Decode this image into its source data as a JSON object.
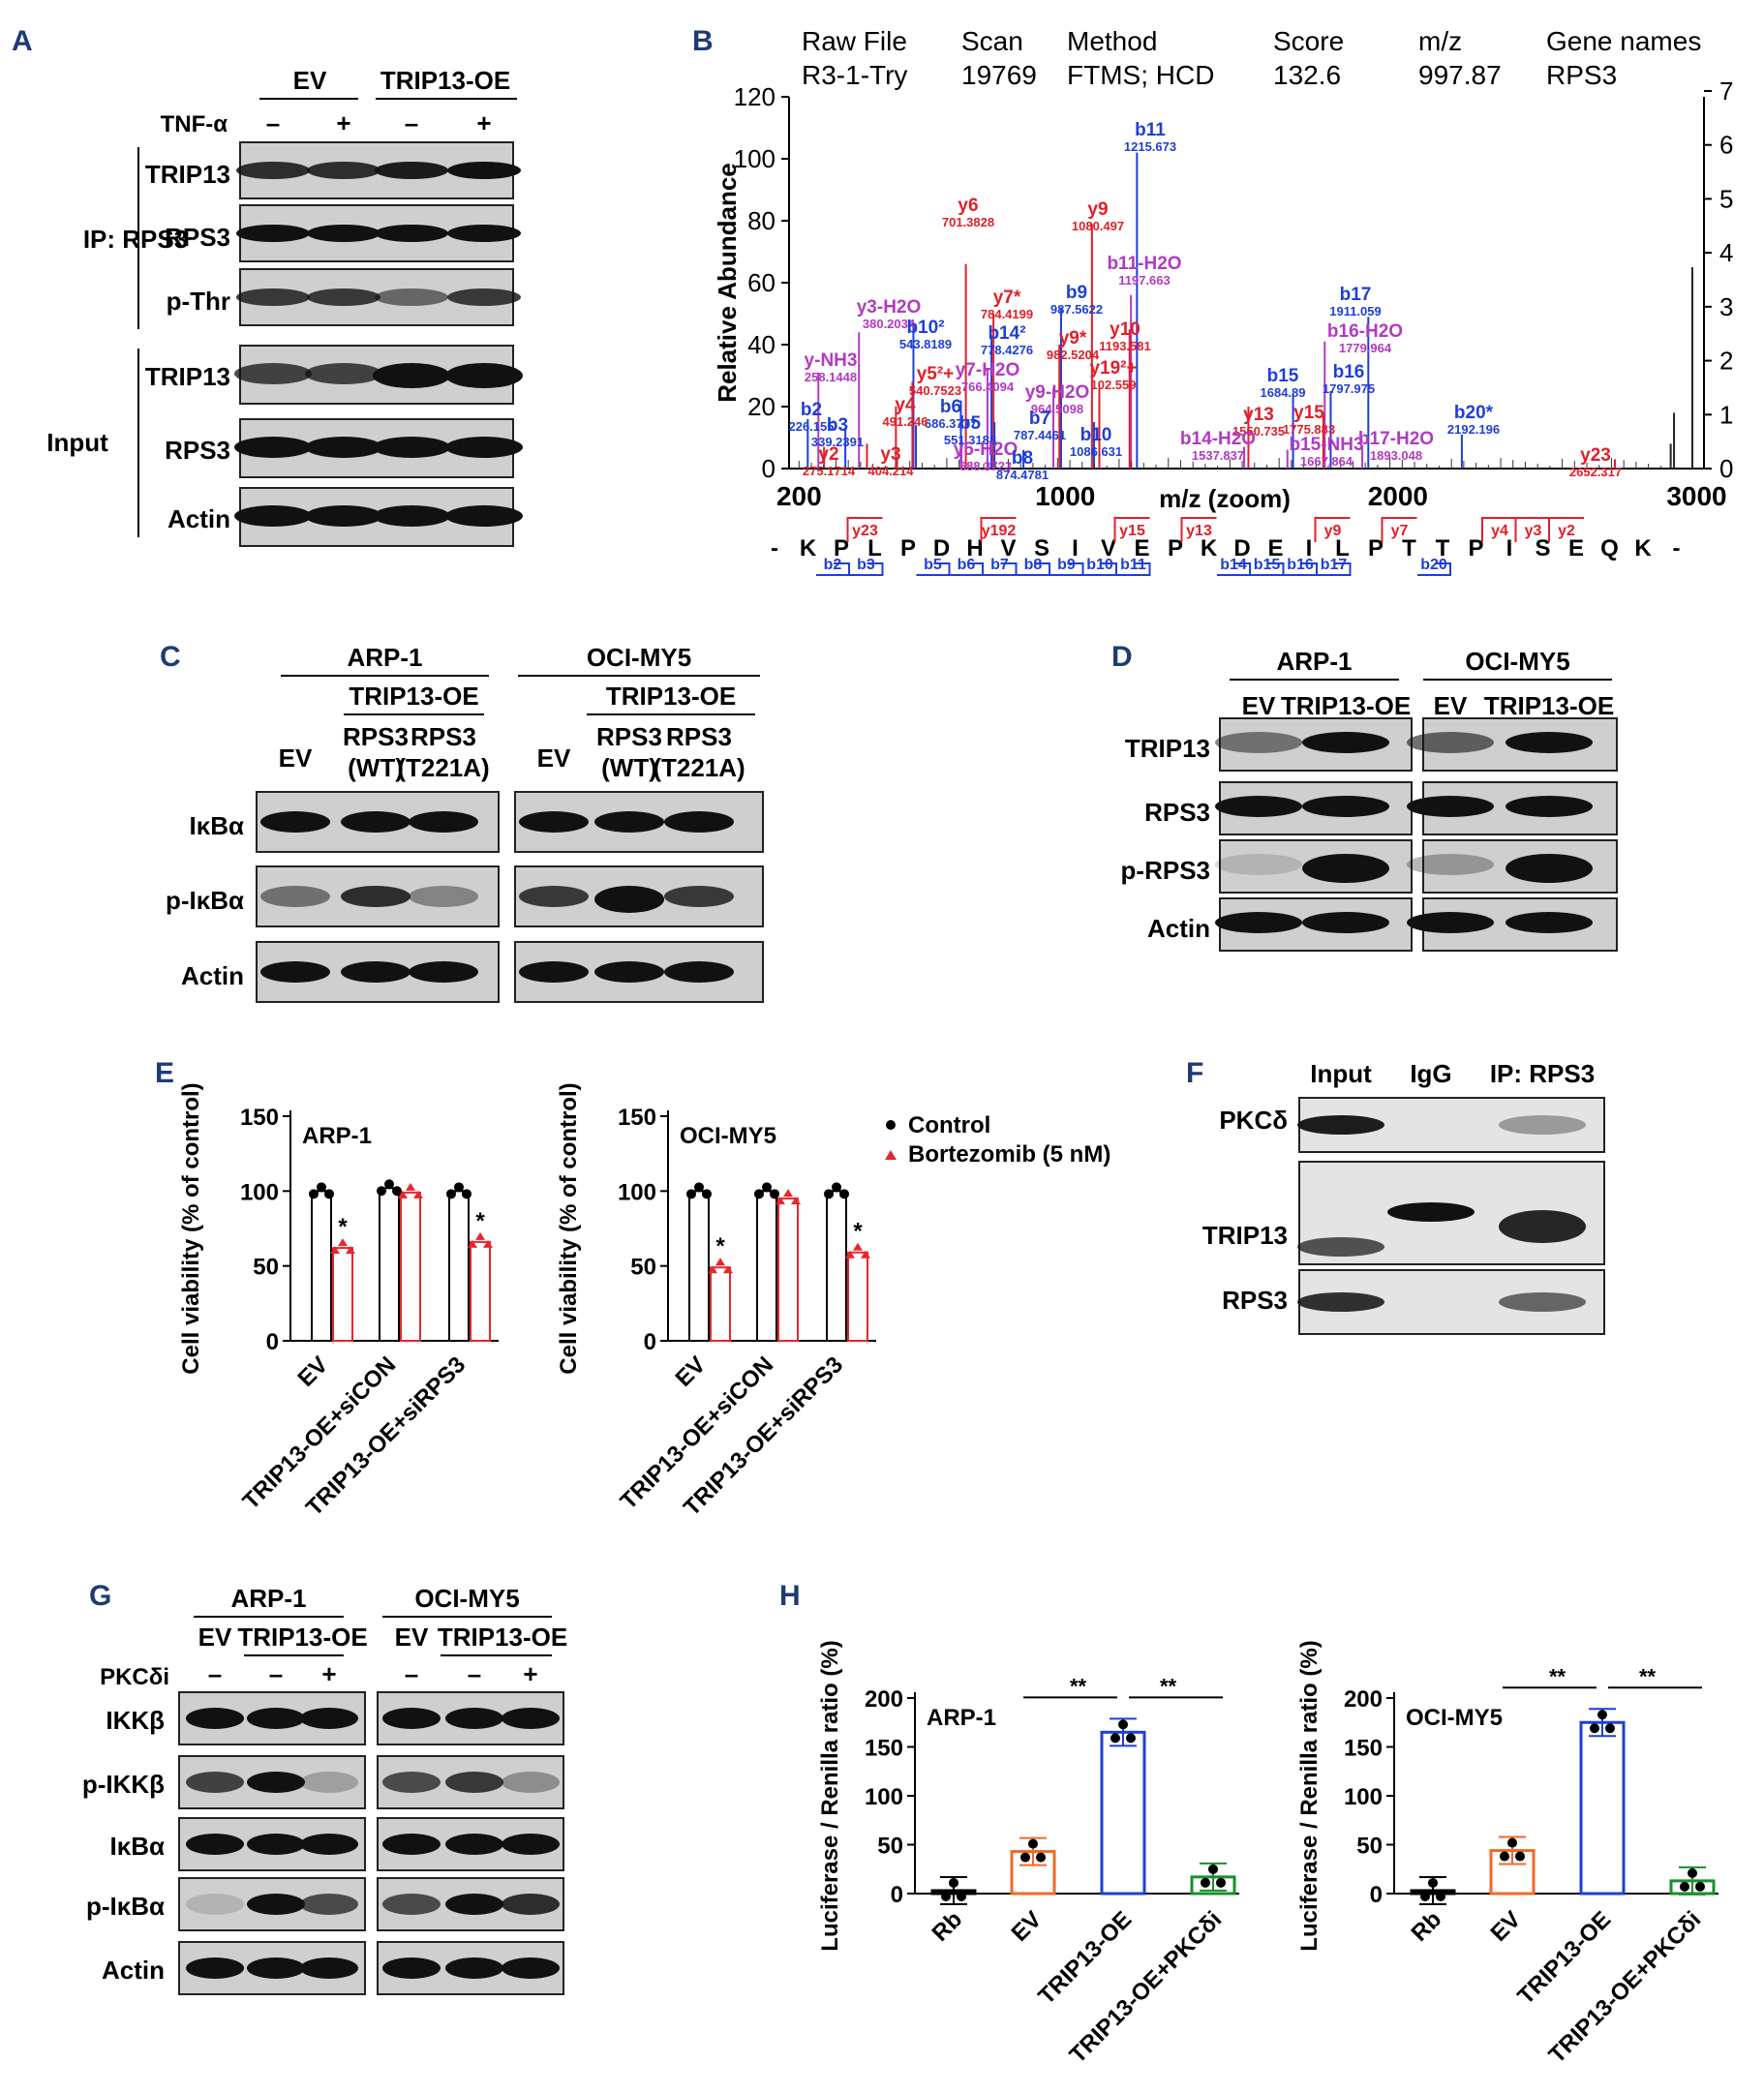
{
  "panel_letters": {
    "A": "A",
    "B": "B",
    "C": "C",
    "D": "D",
    "E": "E",
    "F": "F",
    "G": "G",
    "H": "H"
  },
  "colors": {
    "letter": "#1f3b73",
    "b_ion": "#1f3fd6",
    "y_ion": "#e0202a",
    "loss": "#b23ac2",
    "red": "#e8262c",
    "blue": "#1f3fd6",
    "orange": "#f06a25",
    "green": "#1a8f2c"
  },
  "panelA": {
    "groups": [
      "EV",
      "TRIP13-OE"
    ],
    "treat_label": "TNF-α",
    "treat_signs": [
      "–",
      "+",
      "–",
      "+"
    ],
    "ip_label": "IP: RPS3",
    "input_label": "Input",
    "ip_rows": [
      "TRIP13",
      "RPS3",
      "p-Thr"
    ],
    "input_rows": [
      "TRIP13",
      "RPS3",
      "Actin"
    ]
  },
  "panelB": {
    "header_keys": [
      "Raw File",
      "Scan",
      "Method",
      "Score",
      "m/z",
      "Gene names"
    ],
    "header_vals": [
      "R3-1-Try",
      "19769",
      "FTMS; HCD",
      "132.6",
      "997.87",
      "RPS3"
    ],
    "ylabel": "Relative Abundance",
    "xlabel": "m/z (zoom)",
    "yticks_left": [
      "0",
      "20",
      "40",
      "60",
      "80",
      "100",
      "120"
    ],
    "yticks_right": [
      "0",
      "1",
      "2",
      "3",
      "4",
      "5",
      "6",
      "7"
    ],
    "xticks": [
      "200",
      "1000",
      "2000",
      "3000"
    ],
    "peptide": [
      "-",
      "K",
      "P",
      "L",
      "P",
      "D",
      "H",
      "V",
      "S",
      "I",
      "V",
      "E",
      "P",
      "K",
      "D",
      "E",
      "I",
      "L",
      "P",
      "T",
      "T",
      "P",
      "I",
      "S",
      "E",
      "Q",
      "K",
      "-"
    ],
    "y_ions_top": [
      "y23",
      "y192",
      "y15",
      "y13",
      "y9",
      "y7",
      "y4",
      "y3",
      "y2"
    ],
    "b_ions_bottom": [
      "b2",
      "b3",
      "b5",
      "b6",
      "b7",
      "b8",
      "b9",
      "b10",
      "b11",
      "b14",
      "b15",
      "b16",
      "b17",
      "b20"
    ],
    "labels": [
      {
        "t": "b11",
        "v": "1215.673",
        "c": "b"
      },
      {
        "t": "y6",
        "v": "701.3828",
        "c": "y"
      },
      {
        "t": "y9",
        "v": "1080.497",
        "c": "y"
      },
      {
        "t": "b11-H2O",
        "v": "1197.663",
        "c": "l"
      },
      {
        "t": "y7*",
        "v": "784.4199",
        "c": "y"
      },
      {
        "t": "b9",
        "v": "987.5622",
        "c": "b"
      },
      {
        "t": "y3-H2O",
        "v": "380.2034",
        "c": "l"
      },
      {
        "t": "b17",
        "v": "1911.059",
        "c": "b"
      },
      {
        "t": "b10²",
        "v": "543.8189",
        "c": "b"
      },
      {
        "t": "b14²",
        "v": "778.4276",
        "c": "b"
      },
      {
        "t": "y9*",
        "v": "982.5204",
        "c": "y"
      },
      {
        "t": "y10",
        "v": "1193.581",
        "c": "y"
      },
      {
        "t": "b16-H2O",
        "v": "1779.964",
        "c": "l"
      },
      {
        "t": "y-NH3",
        "v": "258.1448",
        "c": "l"
      },
      {
        "t": "y7-H2O",
        "v": "766.4094",
        "c": "l"
      },
      {
        "t": "y19²+",
        "v": "102.559",
        "c": "y"
      },
      {
        "t": "y5²+",
        "v": "540.7523",
        "c": "y"
      },
      {
        "t": "y9-H2O",
        "v": "964.5098",
        "c": "l"
      },
      {
        "t": "b15",
        "v": "1684.89",
        "c": "b"
      },
      {
        "t": "b16",
        "v": "1797.975",
        "c": "b"
      },
      {
        "t": "b6",
        "v": "686.3777",
        "c": "b"
      },
      {
        "t": "y4",
        "v": "491.246",
        "c": "y"
      },
      {
        "t": "b2",
        "v": "226.155",
        "c": "b"
      },
      {
        "t": "b3",
        "v": "339.2391",
        "c": "b"
      },
      {
        "t": "b5",
        "v": "551.3188",
        "c": "b"
      },
      {
        "t": "b7",
        "v": "787.4461",
        "c": "b"
      },
      {
        "t": "y13",
        "v": "1550.735",
        "c": "y"
      },
      {
        "t": "y15",
        "v": "1775.883",
        "c": "y"
      },
      {
        "t": "b20*",
        "v": "2192.196",
        "c": "b"
      },
      {
        "t": "y2",
        "v": "275.1714",
        "c": "y"
      },
      {
        "t": "y3",
        "v": "404.214",
        "c": "y"
      },
      {
        "t": "y5-H2O",
        "v": "688.3723",
        "c": "l"
      },
      {
        "t": "b8",
        "v": "874.4781",
        "c": "b"
      },
      {
        "t": "b10",
        "v": "1086.631",
        "c": "b"
      },
      {
        "t": "b14-H2O",
        "v": "1537.837",
        "c": "l"
      },
      {
        "t": "b15-NH3",
        "v": "1667.864",
        "c": "l"
      },
      {
        "t": "b17-H2O",
        "v": "1893.048",
        "c": "l"
      },
      {
        "t": "y23",
        "v": "2652.317",
        "c": "y"
      }
    ]
  },
  "panelC": {
    "cells": [
      "ARP-1",
      "OCI-MY5"
    ],
    "oe": "TRIP13-OE",
    "lanes": [
      [
        "EV",
        ""
      ],
      [
        "RPS3",
        "(WT)"
      ],
      [
        "RPS3",
        "(T221A)"
      ]
    ],
    "rows": [
      "IκBα",
      "p-IκBα",
      "Actin"
    ]
  },
  "panelD": {
    "cells": [
      "ARP-1",
      "OCI-MY5"
    ],
    "lanes": [
      "EV",
      "TRIP13-OE"
    ],
    "rows": [
      "TRIP13",
      "RPS3",
      "p-RPS3",
      "Actin"
    ]
  },
  "panelF": {
    "lanes": [
      "Input",
      "IgG",
      "IP: RPS3"
    ],
    "rows": [
      "PKCδ",
      "TRIP13",
      "RPS3"
    ]
  },
  "panelG": {
    "cells": [
      "ARP-1",
      "OCI-MY5"
    ],
    "lanes": [
      "EV",
      "TRIP13-OE"
    ],
    "treat_label": "PKCδi",
    "signs": [
      "–",
      "–",
      "+"
    ],
    "rows": [
      "IKKβ",
      "p-IKKβ",
      "IκBα",
      "p-IκBα",
      "Actin"
    ]
  },
  "chart_data": [
    {
      "panel": "E",
      "type": "bar",
      "title": "ARP-1",
      "ylabel": "Cell viability (% of control)",
      "ylim": [
        0,
        150
      ],
      "yticks": [
        "0",
        "50",
        "100",
        "150"
      ],
      "categories": [
        "EV",
        "TRIP13-OE+siCON",
        "TRIP13-OE+siRPS3"
      ],
      "series": [
        {
          "name": "Control",
          "values": [
            100,
            102,
            100
          ]
        },
        {
          "name": "Bortezomib (5 nM)",
          "values": [
            62,
            99,
            66
          ]
        }
      ],
      "significance": [
        [
          "",
          "*"
        ],
        [
          "",
          ""
        ],
        [
          "",
          "*"
        ]
      ]
    },
    {
      "panel": "E",
      "type": "bar",
      "title": "OCI-MY5",
      "ylabel": "Cell viability (% of control)",
      "ylim": [
        0,
        150
      ],
      "yticks": [
        "0",
        "50",
        "100",
        "150"
      ],
      "categories": [
        "EV",
        "TRIP13-OE+siCON",
        "TRIP13-OE+siRPS3"
      ],
      "series": [
        {
          "name": "Control",
          "values": [
            100,
            100,
            100
          ]
        },
        {
          "name": "Bortezomib (5 nM)",
          "values": [
            49,
            95,
            59
          ]
        }
      ],
      "significance": [
        [
          "",
          "*"
        ],
        [
          "",
          ""
        ],
        [
          "",
          "*"
        ]
      ]
    },
    {
      "panel": "H",
      "type": "bar",
      "title": "ARP-1",
      "ylabel": "Luciferase / Renilla ratio (%)",
      "ylim": [
        0,
        200
      ],
      "yticks": [
        "0",
        "50",
        "100",
        "150",
        "200"
      ],
      "categories": [
        "Rb",
        "EV",
        "TRIP13-OE",
        "TRIP13-OE+PKCδi"
      ],
      "values": [
        3,
        43,
        165,
        17
      ],
      "sig_brackets": [
        "**",
        "**"
      ]
    },
    {
      "panel": "H",
      "type": "bar",
      "title": "OCI-MY5",
      "ylabel": "Luciferase / Renilla ratio (%)",
      "ylim": [
        0,
        200
      ],
      "yticks": [
        "0",
        "50",
        "100",
        "150",
        "200"
      ],
      "categories": [
        "Rb",
        "EV",
        "TRIP13-OE",
        "TRIP13-OE+PKCδi"
      ],
      "values": [
        3,
        44,
        175,
        13
      ],
      "sig_brackets": [
        "**",
        "**"
      ]
    }
  ]
}
